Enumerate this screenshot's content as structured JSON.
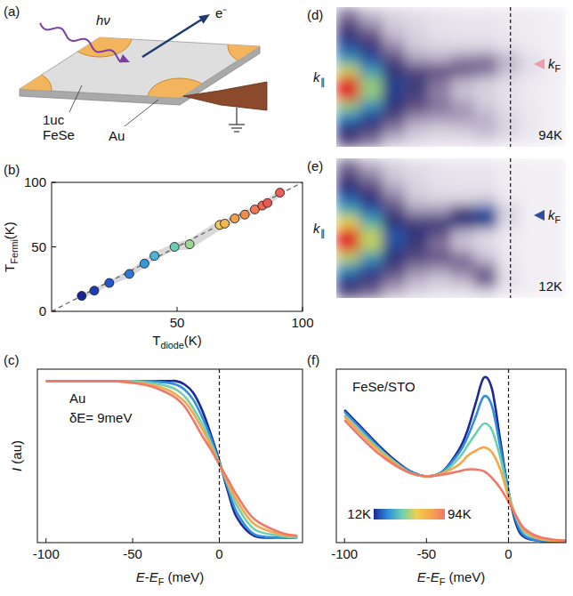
{
  "diagram": {
    "panel_label": "(a)",
    "photon": "hν",
    "electron": "e⁻",
    "film": [
      "1uc",
      "FeSe"
    ],
    "pad": "Au"
  },
  "chart_data": [
    {
      "type": "scatter",
      "panel_label": "(b)",
      "xtitle": [
        {
          "t": "T"
        },
        {
          "t": "diode",
          "sub": true
        },
        {
          "t": "(K)"
        }
      ],
      "ytitle": [
        {
          "t": "T"
        },
        {
          "t": "Fermi",
          "sub": true
        },
        {
          "t": "(K)"
        }
      ],
      "xlim": [
        0,
        100
      ],
      "ylim": [
        0,
        100
      ],
      "xticks": [
        50,
        100
      ],
      "yticks": [
        0,
        50,
        100
      ],
      "series": [
        {
          "type": "scatter",
          "marker": "circle",
          "x": [
            12,
            17,
            23,
            31,
            37,
            41,
            49,
            55,
            67,
            69,
            73,
            77,
            81,
            84,
            86,
            91
          ],
          "values": [
            12,
            16,
            22,
            29,
            37,
            43,
            50,
            52,
            67,
            68,
            72,
            75,
            79,
            82,
            84,
            92
          ],
          "errors": [
            2,
            2,
            2,
            3,
            3,
            3,
            3,
            4,
            4,
            3,
            3,
            3,
            3,
            3,
            3,
            3
          ],
          "colors": [
            "#1a2496",
            "#1f3cb4",
            "#2458c8",
            "#2a78d8",
            "#3598dc",
            "#4bb4d8",
            "#6ccab8",
            "#9ad890",
            "#f0c860",
            "#f4b450",
            "#f4a048",
            "#f28c48",
            "#f07850",
            "#ec6850",
            "#e85a52",
            "#e8605a"
          ]
        },
        {
          "type": "line",
          "line_style": "dashed",
          "color": "#666666",
          "x": [
            0,
            100
          ],
          "values": [
            0,
            100
          ]
        }
      ]
    },
    {
      "type": "line",
      "panel_label": "(c)",
      "ytitle": [
        {
          "t": "I",
          "italic": true
        },
        {
          "t": " (au)"
        }
      ],
      "xtitle": [
        {
          "t": "E",
          "italic": true
        },
        {
          "t": "-"
        },
        {
          "t": "E",
          "italic": true
        },
        {
          "t": "F",
          "sub": true
        },
        {
          "t": " (meV)"
        }
      ],
      "annotations": [
        "Au",
        "δE= 9meV"
      ],
      "xlim": [
        -105,
        48
      ],
      "ylim": [
        0,
        1.02
      ],
      "xticks": [
        -100,
        -50,
        0
      ],
      "tick_labels": "x",
      "vline": 0,
      "x": [
        -100,
        -90,
        -80,
        -70,
        -60,
        -50,
        -40,
        -30,
        -25,
        -20,
        -15,
        -10,
        -5,
        0,
        5,
        10,
        20,
        35,
        45
      ],
      "series": [
        {
          "color": "#1c2a98",
          "values": [
            0.95,
            0.95,
            0.95,
            0.95,
            0.95,
            0.95,
            0.95,
            0.95,
            0.95,
            0.93,
            0.88,
            0.78,
            0.64,
            0.48,
            0.3,
            0.15,
            0.04,
            0.03,
            0.03
          ]
        },
        {
          "color": "#2f8fdc",
          "values": [
            0.95,
            0.95,
            0.95,
            0.95,
            0.95,
            0.95,
            0.95,
            0.94,
            0.93,
            0.9,
            0.84,
            0.74,
            0.62,
            0.47,
            0.32,
            0.18,
            0.05,
            0.03,
            0.03
          ]
        },
        {
          "color": "#6fd0b0",
          "values": [
            0.95,
            0.95,
            0.95,
            0.95,
            0.95,
            0.95,
            0.94,
            0.92,
            0.9,
            0.86,
            0.79,
            0.7,
            0.59,
            0.47,
            0.34,
            0.22,
            0.08,
            0.04,
            0.03
          ]
        },
        {
          "color": "#f4a84a",
          "values": [
            0.95,
            0.95,
            0.95,
            0.95,
            0.95,
            0.94,
            0.93,
            0.9,
            0.87,
            0.83,
            0.76,
            0.67,
            0.57,
            0.46,
            0.35,
            0.25,
            0.11,
            0.05,
            0.04
          ]
        },
        {
          "color": "#f07868",
          "values": [
            0.95,
            0.95,
            0.95,
            0.95,
            0.95,
            0.94,
            0.92,
            0.88,
            0.85,
            0.8,
            0.72,
            0.63,
            0.55,
            0.46,
            0.37,
            0.28,
            0.14,
            0.06,
            0.04
          ]
        }
      ]
    },
    {
      "type": "heatmap",
      "panel_label": "(d)",
      "xlim": [
        -110,
        35
      ],
      "vline": 0,
      "tick_labels": false,
      "color_range": [
        0,
        1
      ],
      "ytitle": [
        {
          "t": "k",
          "italic": true
        },
        {
          "t": "∥",
          "sub": true
        }
      ],
      "kf": {
        "row": 4.9,
        "color": "#eaa0a8",
        "parts": [
          {
            "t": "k",
            "italic": true
          },
          {
            "t": "F",
            "sub": true
          }
        ]
      },
      "annotations": [
        "94K"
      ],
      "cells": [
        [
          0.28,
          0.18,
          0.11,
          0.08,
          0.06,
          0.05,
          0.05,
          0.04,
          0.03,
          0.02
        ],
        [
          0.38,
          0.26,
          0.15,
          0.1,
          0.07,
          0.06,
          0.06,
          0.05,
          0.03,
          0.02
        ],
        [
          0.48,
          0.36,
          0.2,
          0.12,
          0.08,
          0.07,
          0.07,
          0.05,
          0.03,
          0.02
        ],
        [
          0.6,
          0.48,
          0.28,
          0.16,
          0.12,
          0.12,
          0.12,
          0.08,
          0.04,
          0.02
        ],
        [
          0.72,
          0.6,
          0.38,
          0.24,
          0.22,
          0.28,
          0.3,
          0.2,
          0.08,
          0.03
        ],
        [
          0.86,
          0.72,
          0.48,
          0.38,
          0.36,
          0.34,
          0.3,
          0.18,
          0.07,
          0.03
        ],
        [
          1.0,
          0.82,
          0.56,
          0.45,
          0.3,
          0.2,
          0.14,
          0.08,
          0.04,
          0.02
        ],
        [
          1.0,
          0.82,
          0.55,
          0.42,
          0.28,
          0.18,
          0.12,
          0.07,
          0.04,
          0.02
        ],
        [
          0.82,
          0.7,
          0.48,
          0.36,
          0.3,
          0.24,
          0.16,
          0.08,
          0.04,
          0.02
        ],
        [
          0.68,
          0.56,
          0.38,
          0.26,
          0.24,
          0.24,
          0.2,
          0.1,
          0.05,
          0.02
        ],
        [
          0.52,
          0.42,
          0.28,
          0.18,
          0.14,
          0.16,
          0.2,
          0.12,
          0.05,
          0.02
        ],
        [
          0.38,
          0.3,
          0.18,
          0.11,
          0.08,
          0.08,
          0.1,
          0.06,
          0.03,
          0.02
        ]
      ]
    },
    {
      "type": "heatmap",
      "panel_label": "(e)",
      "xlim": [
        -110,
        35
      ],
      "vline": 0,
      "tick_labels": false,
      "color_range": [
        0,
        1
      ],
      "ytitle": [
        {
          "t": "k",
          "italic": true
        },
        {
          "t": "∥",
          "sub": true
        }
      ],
      "kf": {
        "row": 4.9,
        "color": "#2f4f9a",
        "parts": [
          {
            "t": "k",
            "italic": true
          },
          {
            "t": "F",
            "sub": true
          }
        ]
      },
      "annotations": [
        "12K"
      ],
      "cells": [
        [
          0.3,
          0.2,
          0.12,
          0.08,
          0.06,
          0.05,
          0.05,
          0.03,
          0.02,
          0.02
        ],
        [
          0.4,
          0.28,
          0.16,
          0.1,
          0.07,
          0.06,
          0.06,
          0.03,
          0.02,
          0.02
        ],
        [
          0.5,
          0.38,
          0.22,
          0.12,
          0.08,
          0.07,
          0.07,
          0.03,
          0.02,
          0.02
        ],
        [
          0.62,
          0.5,
          0.3,
          0.16,
          0.12,
          0.12,
          0.15,
          0.04,
          0.02,
          0.02
        ],
        [
          0.75,
          0.62,
          0.4,
          0.25,
          0.25,
          0.4,
          0.6,
          0.12,
          0.02,
          0.02
        ],
        [
          0.88,
          0.75,
          0.5,
          0.42,
          0.45,
          0.5,
          0.55,
          0.1,
          0.02,
          0.02
        ],
        [
          1.0,
          0.85,
          0.6,
          0.5,
          0.35,
          0.2,
          0.12,
          0.04,
          0.02,
          0.02
        ],
        [
          1.0,
          0.85,
          0.58,
          0.45,
          0.3,
          0.18,
          0.1,
          0.04,
          0.02,
          0.02
        ],
        [
          0.85,
          0.72,
          0.5,
          0.38,
          0.35,
          0.3,
          0.18,
          0.05,
          0.02,
          0.02
        ],
        [
          0.7,
          0.58,
          0.4,
          0.28,
          0.25,
          0.3,
          0.3,
          0.06,
          0.02,
          0.02
        ],
        [
          0.55,
          0.45,
          0.3,
          0.2,
          0.15,
          0.2,
          0.35,
          0.08,
          0.02,
          0.02
        ],
        [
          0.4,
          0.32,
          0.2,
          0.12,
          0.08,
          0.08,
          0.12,
          0.04,
          0.02,
          0.02
        ]
      ]
    },
    {
      "type": "line",
      "panel_label": "(f)",
      "title": "FeSe/STO",
      "xtitle": [
        {
          "t": "E",
          "italic": true
        },
        {
          "t": "-"
        },
        {
          "t": "E",
          "italic": true
        },
        {
          "t": "F",
          "sub": true
        },
        {
          "t": " (meV)"
        }
      ],
      "xlim": [
        -105,
        35
      ],
      "ylim": [
        0,
        1.02
      ],
      "xticks": [
        -100,
        -50,
        0
      ],
      "tick_labels": "x",
      "vline": 0,
      "x": [
        -100,
        -90,
        -80,
        -70,
        -60,
        -50,
        -40,
        -30,
        -25,
        -20,
        -15,
        -10,
        -5,
        0,
        5,
        10,
        20,
        35
      ],
      "series": [
        {
          "color": "#1c2a98",
          "values": [
            0.78,
            0.68,
            0.58,
            0.49,
            0.42,
            0.39,
            0.42,
            0.55,
            0.66,
            0.82,
            0.97,
            0.9,
            0.6,
            0.3,
            0.1,
            0.03,
            0.01,
            0.01
          ]
        },
        {
          "color": "#2f8fdc",
          "values": [
            0.77,
            0.67,
            0.57,
            0.48,
            0.42,
            0.39,
            0.42,
            0.53,
            0.62,
            0.74,
            0.86,
            0.8,
            0.56,
            0.3,
            0.12,
            0.04,
            0.01,
            0.01
          ]
        },
        {
          "color": "#6fd0b0",
          "values": [
            0.75,
            0.65,
            0.56,
            0.48,
            0.41,
            0.39,
            0.41,
            0.5,
            0.57,
            0.64,
            0.7,
            0.66,
            0.5,
            0.29,
            0.14,
            0.06,
            0.02,
            0.01
          ]
        },
        {
          "color": "#f4a84a",
          "values": [
            0.74,
            0.64,
            0.55,
            0.47,
            0.41,
            0.39,
            0.41,
            0.46,
            0.51,
            0.54,
            0.56,
            0.53,
            0.43,
            0.27,
            0.15,
            0.07,
            0.02,
            0.01
          ]
        },
        {
          "color": "#f07868",
          "values": [
            0.72,
            0.62,
            0.53,
            0.46,
            0.41,
            0.39,
            0.4,
            0.42,
            0.43,
            0.43,
            0.42,
            0.38,
            0.32,
            0.24,
            0.15,
            0.08,
            0.03,
            0.01
          ]
        }
      ],
      "colorbar": {
        "range": [
          12,
          94
        ],
        "colors": [
          "#1c2a98",
          "#2f8fdc",
          "#6fd0b0",
          "#f0d050",
          "#f4a84a",
          "#f07868"
        ],
        "ticks": [
          {
            "value": 12,
            "label": "12K"
          },
          {
            "value": 94,
            "label": "94K"
          }
        ]
      }
    }
  ]
}
